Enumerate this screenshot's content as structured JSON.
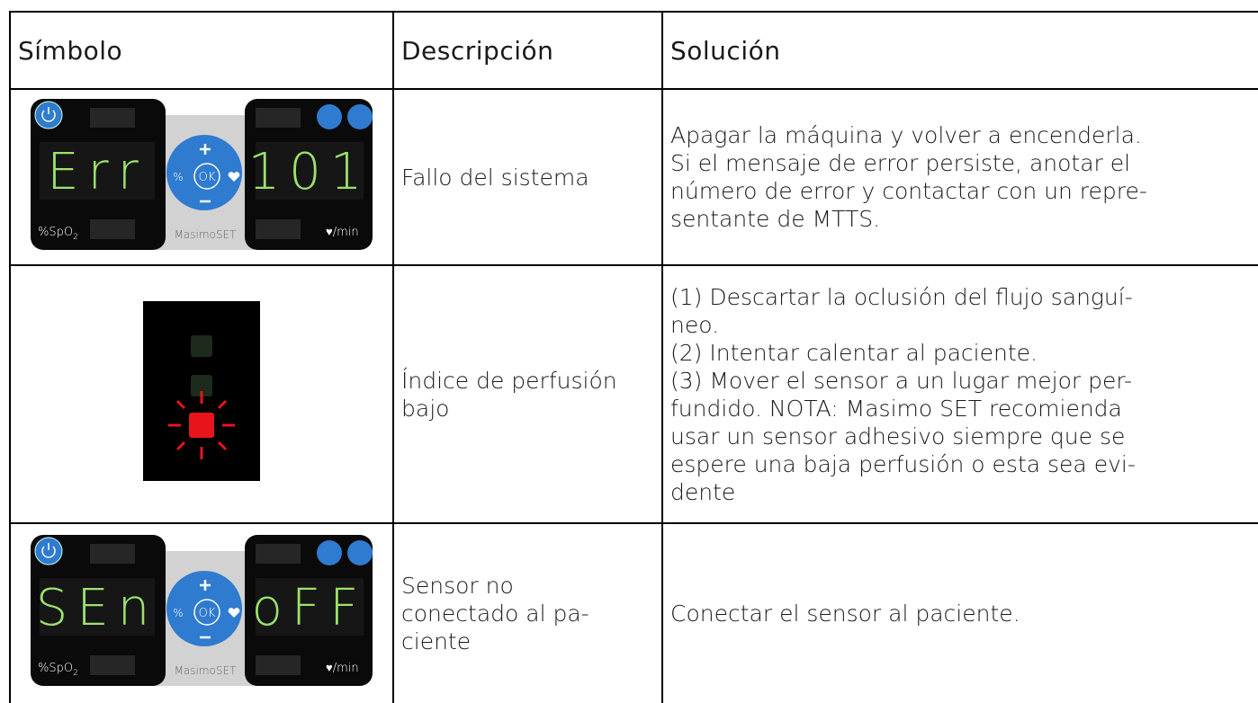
{
  "header": {
    "cells": [
      "Símbolo",
      "Descripción",
      "Solución"
    ]
  },
  "table": {
    "rows": [
      {
        "symbol": {
          "left_display": "Err",
          "right_display": "101",
          "spo2_unit": "%SpO",
          "spo2_sub": "2",
          "percent": "%",
          "ok": "OK",
          "brand": "MasimoSET",
          "rate_unit": "♥/min"
        },
        "description": [
          "Fallo del sistema"
        ],
        "solution": [
          "Apagar la máquina y volver a encenderla.",
          "Si el mensaje de error persiste, anotar el",
          "número de error y contactar con un repre-",
          "sentante de MTTS."
        ]
      },
      {
        "description": [
          "Índice de perfusión",
          "bajo"
        ],
        "solution": [
          "(1) Descartar la oclusión del flujo sanguí-",
          "neo.",
          "(2) Intentar calentar al paciente.",
          "(3) Mover el sensor a un lugar mejor per-",
          "fundido. NOTA: Masimo SET recomienda",
          "usar un sensor adhesivo siempre que se",
          "espere una baja perfusión o esta sea evi-",
          "dente"
        ]
      },
      {
        "symbol": {
          "left_display": "SEn",
          "right_display": "oFF",
          "spo2_unit": "%SpO",
          "spo2_sub": "2",
          "percent": "%",
          "ok": "OK",
          "brand": "MasimoSET",
          "rate_unit": "♥/min"
        },
        "description": [
          "Sensor no",
          "conectado al pa-",
          "ciente"
        ],
        "solution": [
          "Conectar el sensor al paciente."
        ]
      }
    ]
  }
}
